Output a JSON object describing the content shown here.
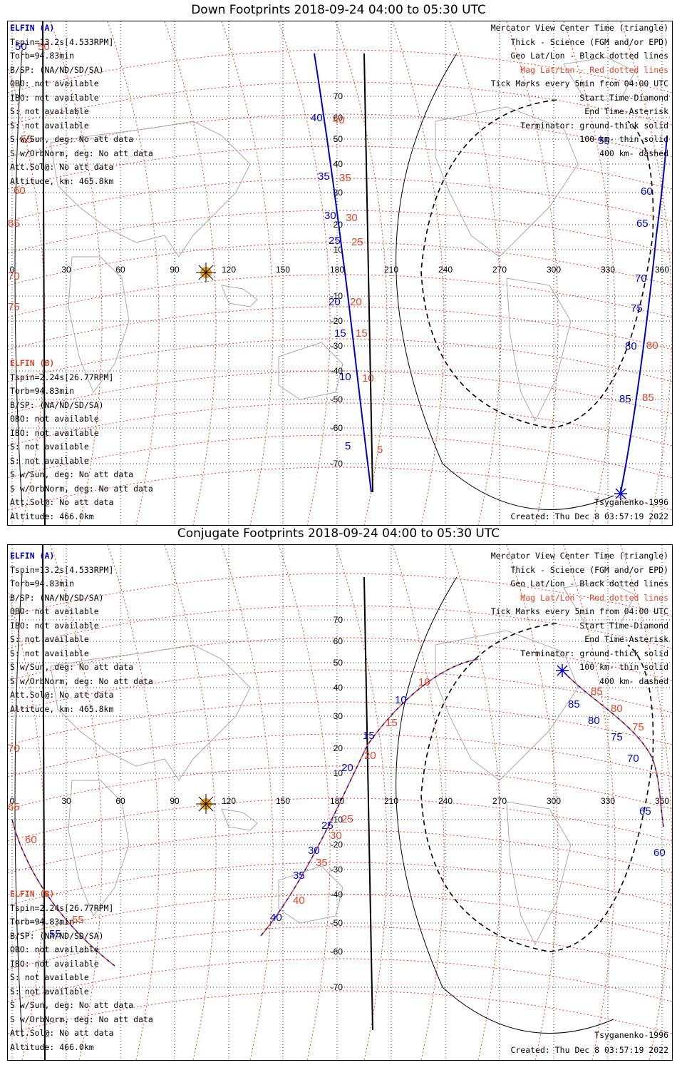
{
  "down": {
    "title": "Down Footprints 2018-09-24 04:00 to 05:30 UTC",
    "elfin_a": {
      "name": "ELFIN (A)",
      "lines": [
        "Tspin=13.2s[4.533RPM]",
        "Torb=94.83min",
        "B/SP: (NA/ND/SD/SA)",
        "OBO: not available",
        "IBO: not available",
        "S: not available",
        "S: not available",
        "S w/Sun, deg: No att data",
        "S w/OrbNorm, deg: No att data",
        "Att.Sol@: No att data",
        "Altitude, km: 465.8km"
      ]
    },
    "elfin_b": {
      "name": "ELFIN (B)",
      "lines": [
        "Tspin=2.24s[26.77RPM]",
        "Torb=94.83min",
        "B/SP: (NA/ND/SD/SA)",
        "OBO: not available",
        "IBO: not available",
        "S: not available",
        "S: not available",
        "S w/Sun, deg: No att data",
        "S w/OrbNorm, deg: No att data",
        "Att.Sol@: No att data",
        "Altitude: 466.0km"
      ]
    },
    "legend": [
      "Mercator View Center Time (triangle)",
      "Thick - Science (FGM and/or EPD)",
      "Geo Lat/Lon - Black dotted lines",
      "Mag Lat/Lon - Red dotted lines",
      "Tick Marks every 5min from 04:00 UTC",
      "Start Time-Diamond",
      "End Time-Asterisk",
      "Terminator: ground-thick solid",
      "100 km- thin solid",
      "400 km- dashed"
    ],
    "model": "Tsyganenko-1996",
    "created": "Created: Thu Dec  8 03:57:19 2022"
  },
  "conj": {
    "title": "Conjugate Footprints 2018-09-24 04:00 to 05:30 UTC",
    "elfin_a": {
      "name": "ELFIN (A)",
      "lines": [
        "Tspin=13.2s[4.533RPM]",
        "Torb=94.83min",
        "B/SP: (NA/ND/SD/SA)",
        "OBO: not available",
        "IBO: not available",
        "S: not available",
        "S: not available",
        "S w/Sun, deg: No att data",
        "S w/OrbNorm, deg: No att data",
        "Att.Sol@: No att data",
        "Altitude, km: 465.8km"
      ]
    },
    "elfin_b": {
      "name": "ELFIN (B)",
      "lines": [
        "Tspin=2.24s[26.77RPM]",
        "Torb=94.83min",
        "B/SP: (NA/ND/SD/SA)",
        "OBO: not available",
        "IBO: not available",
        "S: not available",
        "S: not available",
        "S w/Sun, deg: No att data",
        "S w/OrbNorm, deg: No att data",
        "Att.Sol@: No att data",
        "Altitude: 466.0km"
      ]
    },
    "legend": [
      "Mercator View Center Time (triangle)",
      "Thick - Science (FGM and/or EPD)",
      "Geo Lat/Lon - Black dotted lines",
      "Mag Lat/Lon - Red dotted lines",
      "Tick Marks every 5min from 04:00 UTC",
      "Start Time-Diamond",
      "End Time-Asterisk",
      "Terminator: ground-thick solid",
      "100 km- thin solid",
      "400 km- dashed"
    ],
    "model": "Tsyganenko-1996",
    "created": "Created: Thu Dec  8 03:57:19 2022"
  },
  "map": {
    "lon_labels": [
      "0",
      "30",
      "60",
      "90",
      "120",
      "150",
      "180",
      "210",
      "240",
      "270",
      "300",
      "330",
      "360"
    ],
    "lat_labels": [
      "70",
      "60",
      "50",
      "40",
      "30",
      "20",
      "10",
      "-10",
      "-20",
      "-30",
      "-40",
      "-50",
      "-60",
      "-70"
    ]
  },
  "down_ticks": {
    "blue": [
      "50",
      "40",
      "35",
      "30",
      "25",
      "20",
      "15",
      "10",
      "5",
      "55",
      "60",
      "65",
      "70",
      "75",
      "80",
      "85"
    ],
    "red": [
      "50",
      "55",
      "60",
      "65",
      "70",
      "75",
      "40",
      "35",
      "30",
      "25",
      "20",
      "15",
      "10",
      "5",
      "80",
      "85"
    ]
  },
  "conj_ticks": {
    "blue": [
      "15",
      "10",
      "20",
      "25",
      "30",
      "35",
      "40",
      "55",
      "85",
      "80",
      "75",
      "70",
      "65",
      "60"
    ],
    "red": [
      "10",
      "15",
      "20",
      "25",
      "30",
      "35",
      "40",
      "55",
      "60",
      "65",
      "70",
      "85",
      "80",
      "75"
    ]
  },
  "colors": {
    "footprint": "#0000cc",
    "mag": "#e0452a",
    "sun": "#f0a020",
    "coast": "#aaaaaa"
  }
}
